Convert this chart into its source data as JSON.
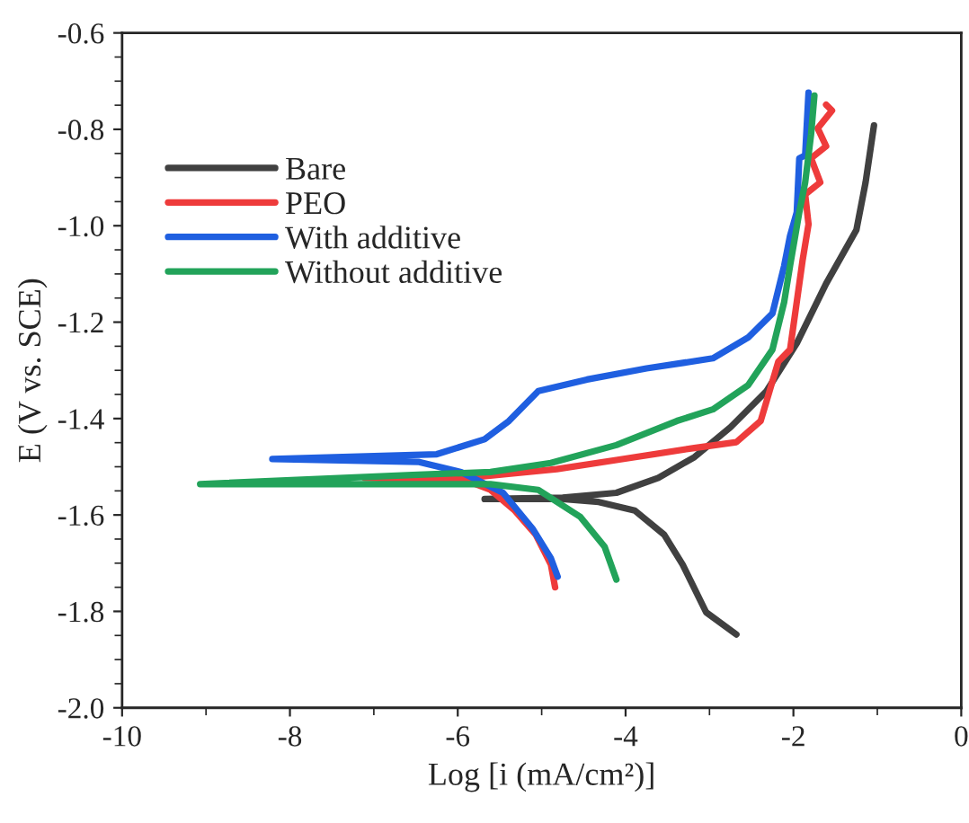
{
  "chart_data": {
    "type": "line",
    "xlabel": "Log [i (mA/cm²)]",
    "ylabel": "E (V vs. SCE)",
    "xlim": [
      -10,
      0
    ],
    "xticks": [
      -10,
      -8,
      -6,
      -4,
      -2,
      0
    ],
    "ylim": [
      -2.0,
      -0.6
    ],
    "yticks": [
      {
        "value": -2,
        "label": "-2.0"
      },
      -1.8,
      -1.6,
      -1.4,
      -1.2,
      {
        "value": -1,
        "label": "-1.0"
      },
      -0.8,
      -0.6
    ],
    "legend": "top left",
    "grid": false,
    "marker": "none",
    "line_style": "solid",
    "series": [
      {
        "name": "Bare",
        "color": "#404040",
        "x": [
          -2.68,
          -3.04,
          -3.32,
          -3.54,
          -3.89,
          -4.32,
          -4.75,
          -5.68,
          -4.75,
          -4.11,
          -3.61,
          -3.18,
          -2.75,
          -2.32,
          -1.96,
          -1.61,
          -1.25,
          -1.14,
          -1.04
        ],
        "values": [
          -1.848,
          -1.802,
          -1.703,
          -1.641,
          -1.591,
          -1.573,
          -1.567,
          -1.567,
          -1.564,
          -1.554,
          -1.523,
          -1.48,
          -1.418,
          -1.343,
          -1.244,
          -1.12,
          -1.009,
          -0.91,
          -0.792
        ]
      },
      {
        "name": "PEO",
        "color": "#ee3b3b",
        "x": [
          -4.84,
          -4.89,
          -5.07,
          -5.32,
          -5.61,
          -5.89,
          -7.11,
          -5.89,
          -4.82,
          -4.11,
          -3.18,
          -2.68,
          -2.39,
          -2.18,
          -2.04,
          -1.96,
          -1.89,
          -1.82,
          -1.86,
          -1.68,
          -1.79,
          -1.61,
          -1.71,
          -1.54,
          -1.61
        ],
        "values": [
          -1.75,
          -1.703,
          -1.641,
          -1.591,
          -1.548,
          -1.529,
          -1.523,
          -1.523,
          -1.505,
          -1.486,
          -1.461,
          -1.449,
          -1.405,
          -1.282,
          -1.257,
          -1.158,
          -1.071,
          -0.997,
          -0.935,
          -0.91,
          -0.86,
          -0.835,
          -0.798,
          -0.761,
          -0.749
        ]
      },
      {
        "name": "With additive",
        "color": "#1f5fe0",
        "x": [
          -4.81,
          -4.89,
          -5.11,
          -5.46,
          -5.96,
          -6.46,
          -8.21,
          -6.25,
          -5.68,
          -5.39,
          -5.04,
          -4.46,
          -3.75,
          -2.96,
          -2.54,
          -2.25,
          -2.11,
          -2.04,
          -1.96,
          -1.93,
          -1.86,
          -1.82
        ],
        "values": [
          -1.728,
          -1.69,
          -1.628,
          -1.554,
          -1.511,
          -1.49,
          -1.484,
          -1.474,
          -1.443,
          -1.405,
          -1.343,
          -1.319,
          -1.296,
          -1.275,
          -1.232,
          -1.182,
          -1.083,
          -1.021,
          -0.972,
          -0.86,
          -0.854,
          -0.724
        ]
      },
      {
        "name": "Without additive",
        "color": "#22a35a",
        "x": [
          -4.11,
          -4.25,
          -4.54,
          -5.04,
          -5.61,
          -9.07,
          -6.54,
          -5.61,
          -4.89,
          -4.11,
          -3.39,
          -2.96,
          -2.54,
          -2.25,
          -2.11,
          -2.04,
          -1.93,
          -1.86,
          -1.79,
          -1.75
        ],
        "values": [
          -1.734,
          -1.666,
          -1.604,
          -1.548,
          -1.536,
          -1.536,
          -1.517,
          -1.511,
          -1.492,
          -1.455,
          -1.405,
          -1.381,
          -1.331,
          -1.257,
          -1.158,
          -1.083,
          -0.972,
          -0.91,
          -0.811,
          -0.73
        ]
      }
    ]
  }
}
